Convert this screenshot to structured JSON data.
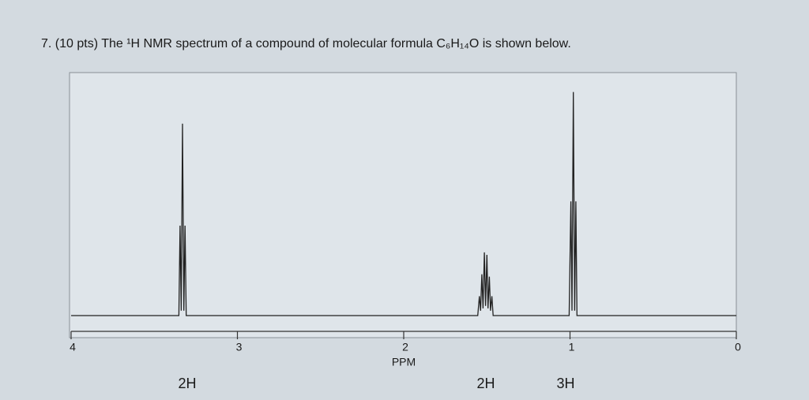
{
  "chart_data": {
    "type": "line",
    "title": "7.  (10 pts) The ¹H NMR spectrum of a compound of molecular formula C₆H₁₄O is shown below.",
    "xlabel": "PPM",
    "xlim": [
      4,
      0
    ],
    "xticks": [
      4,
      3,
      2,
      1,
      0
    ],
    "ylim": [
      0,
      1
    ],
    "color": "#222222",
    "x": [
      4.0,
      3.352,
      3.345,
      3.338,
      3.33,
      3.322,
      3.315,
      3.308,
      1.555,
      1.545,
      1.538,
      1.53,
      1.523,
      1.515,
      1.508,
      1.5,
      1.493,
      1.485,
      1.478,
      1.47,
      1.462,
      1.005,
      0.995,
      0.988,
      0.98,
      0.972,
      0.965,
      0.958,
      0.0
    ],
    "values": [
      0,
      0,
      0.37,
      0.02,
      0.79,
      0.02,
      0.37,
      0,
      0,
      0.08,
      0.02,
      0.17,
      0.03,
      0.26,
      0.04,
      0.25,
      0.03,
      0.16,
      0.02,
      0.08,
      0,
      0,
      0.47,
      0.02,
      0.92,
      0.02,
      0.47,
      0,
      0
    ],
    "integrations": [
      "2H",
      "2H",
      "3H"
    ]
  }
}
